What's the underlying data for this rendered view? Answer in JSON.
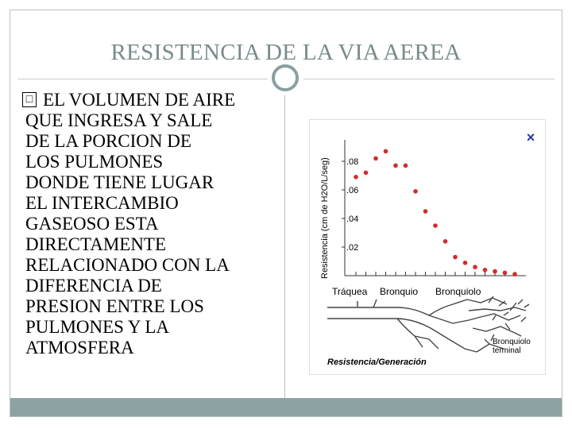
{
  "slide": {
    "title": "RESISTENCIA DE LA VIA AEREA",
    "bullet_marker": "□",
    "bullet_lines": [
      "EL VOLUMEN DE AIRE",
      "QUE INGRESA Y SALE",
      "DE LA PORCION DE",
      "LOS PULMONES",
      "DONDE TIENE LUGAR",
      "EL INTERCAMBIO",
      "GASEOSO ESTA",
      "DIRECTAMENTE",
      "RELACIONADO CON LA",
      "DIFERENCIA DE",
      "PRESION ENTRE LOS",
      "PULMONES Y LA",
      "ATMOSFERA"
    ]
  },
  "chart_data": {
    "type": "scatter",
    "ylabel": "Resistencia (cm de H2O/L/seg)",
    "y_ticks": [
      ".08",
      ".06",
      ".04",
      ".02"
    ],
    "ylim": [
      0,
      0.095
    ],
    "x_labels": [
      "Tráquea",
      "Bronquio",
      "Bronquiolo"
    ],
    "annotation_label": "Bronquiolo terminal",
    "footer": "Resistencia/Generación",
    "close_mark": "×",
    "points": [
      {
        "x": 1,
        "y": 0.069
      },
      {
        "x": 2,
        "y": 0.072
      },
      {
        "x": 3,
        "y": 0.082
      },
      {
        "x": 4,
        "y": 0.087
      },
      {
        "x": 5,
        "y": 0.077
      },
      {
        "x": 6,
        "y": 0.077
      },
      {
        "x": 7,
        "y": 0.059
      },
      {
        "x": 8,
        "y": 0.045
      },
      {
        "x": 9,
        "y": 0.035
      },
      {
        "x": 10,
        "y": 0.024
      },
      {
        "x": 11,
        "y": 0.013
      },
      {
        "x": 12,
        "y": 0.009
      },
      {
        "x": 13,
        "y": 0.006
      },
      {
        "x": 14,
        "y": 0.004
      },
      {
        "x": 15,
        "y": 0.003
      },
      {
        "x": 16,
        "y": 0.002
      },
      {
        "x": 17,
        "y": 0.001
      }
    ]
  },
  "colors": {
    "title": "#7a8a8a",
    "accent": "#8da3a3",
    "points": "#d42a2a",
    "close": "#2a3aa8"
  }
}
